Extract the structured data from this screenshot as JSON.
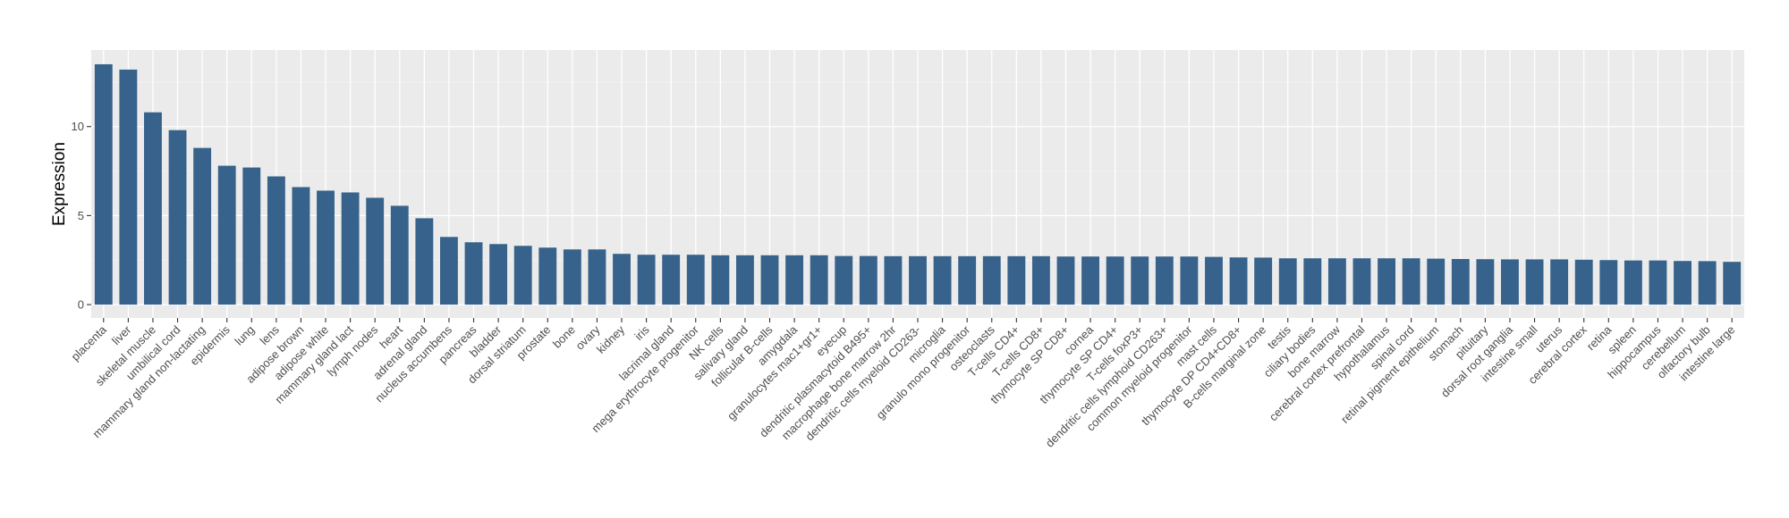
{
  "chart_data": {
    "type": "bar",
    "title": "",
    "xlabel": "",
    "ylabel": "Expression",
    "ylim": [
      -0.75,
      14.3
    ],
    "yticks": [
      0,
      5,
      10
    ],
    "grid": true,
    "legend": "none",
    "colors": {
      "bar": "#36628b",
      "panel": "#ebebeb",
      "grid_major": "#ffffff",
      "grid_minor": "#f4f4f4"
    },
    "categories": [
      "placenta",
      "liver",
      "skeletal muscle",
      "umbilical cord",
      "mammary gland non-lactating",
      "epidermis",
      "lung",
      "lens",
      "adipose brown",
      "adipose white",
      "mammary gland  lact",
      "lymph nodes",
      "heart",
      "adrenal gland",
      "nucleus accumbens",
      "pancreas",
      "bladder",
      "dorsal striatum",
      "prostate",
      "bone",
      "ovary",
      "kidney",
      "iris",
      "lacrimal gland",
      "mega erythrocyte progenitor",
      "NK cells",
      "salivary gland",
      "follicular B-cells",
      "amygdala",
      "granulocytes mac1+gr1+",
      "eyecup",
      "dendritic plasmacytoid B495+",
      "macrophage bone marrow 2hr",
      "dendritic cells myeloid CD263-",
      "microglia",
      "granulo mono progenitor",
      "osteoclasts",
      "T-cells CD4+",
      "T-cells CD8+",
      "thymocyte SP CD8+",
      "cornea",
      "thymocyte SP CD4+",
      "T-cells foxP3+",
      "dendritic cells lymphoid CD263+",
      "common myeloid progenitor",
      "mast cells",
      "thymocyte DP CD4+CD8+",
      "B-cells marginal zone",
      "testis",
      "ciliary bodies",
      "bone marrow",
      "cerebral cortex prefrontal",
      "hypothalamus",
      "spinal cord",
      "retinal pigment epithelium",
      "stomach",
      "pituitary",
      "dorsal root ganglia",
      "intestine small",
      "uterus",
      "cerebral cortex",
      "retina",
      "spleen",
      "hippocampus",
      "cerebellum",
      "olfactory bulb",
      "intestine large"
    ],
    "values": [
      13.5,
      13.2,
      10.8,
      9.8,
      8.8,
      7.8,
      7.7,
      7.2,
      6.6,
      6.4,
      6.3,
      6.0,
      5.55,
      4.85,
      3.8,
      3.5,
      3.4,
      3.3,
      3.2,
      3.1,
      3.1,
      2.85,
      2.8,
      2.8,
      2.8,
      2.77,
      2.77,
      2.77,
      2.77,
      2.77,
      2.73,
      2.73,
      2.72,
      2.72,
      2.72,
      2.72,
      2.72,
      2.72,
      2.72,
      2.7,
      2.7,
      2.7,
      2.7,
      2.7,
      2.7,
      2.68,
      2.65,
      2.64,
      2.6,
      2.6,
      2.6,
      2.6,
      2.6,
      2.6,
      2.58,
      2.56,
      2.55,
      2.54,
      2.54,
      2.54,
      2.52,
      2.5,
      2.48,
      2.48,
      2.45,
      2.44,
      2.4
    ]
  }
}
